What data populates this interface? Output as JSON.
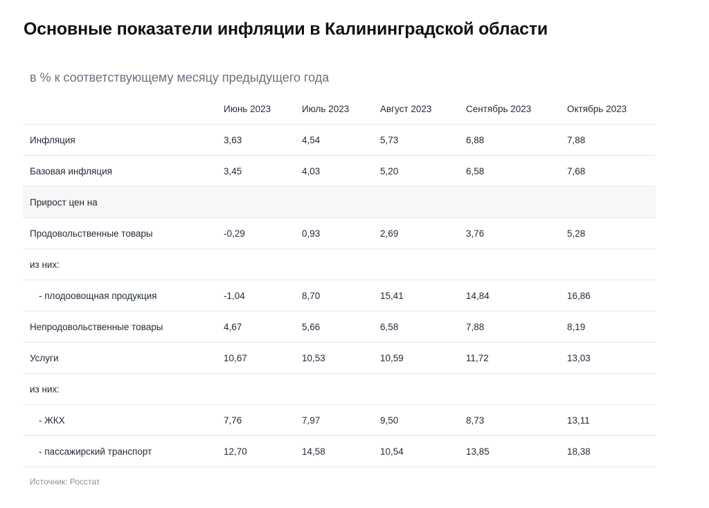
{
  "title": "Основные показатели инфляции в Калининградской области",
  "subtitle": "в % к соответствующему месяцу предыдущего года",
  "source": "Источник: Росстат",
  "chart_data": {
    "type": "table",
    "columns": [
      "",
      "Июнь 2023",
      "Июль 2023",
      "Август 2023",
      "Сентябрь 2023",
      "Октябрь 2023"
    ],
    "rows": [
      {
        "label": "Инфляция",
        "values": [
          "3,63",
          "4,54",
          "5,73",
          "6,88",
          "7,88"
        ]
      },
      {
        "label": "Базовая инфляция",
        "values": [
          "3,45",
          "4,03",
          "5,20",
          "6,58",
          "7,68"
        ]
      },
      {
        "label": "Прирост цен на",
        "values": [
          "",
          "",
          "",
          "",
          ""
        ],
        "shaded": true
      },
      {
        "label": "Продовольственные товары",
        "values": [
          "-0,29",
          "0,93",
          "2,69",
          "3,76",
          "5,28"
        ]
      },
      {
        "label": "из них:",
        "values": [
          "",
          "",
          "",
          "",
          ""
        ]
      },
      {
        "label": "- плодоовощная продукция",
        "values": [
          "-1,04",
          "8,70",
          "15,41",
          "14,84",
          "16,86"
        ],
        "indent": true
      },
      {
        "label": "Непродовольственные товары",
        "values": [
          "4,67",
          "5,66",
          "6,58",
          "7,88",
          "8,19"
        ]
      },
      {
        "label": "Услуги",
        "values": [
          "10,67",
          "10,53",
          "10,59",
          "11,72",
          "13,03"
        ]
      },
      {
        "label": "из них:",
        "values": [
          "",
          "",
          "",
          "",
          ""
        ]
      },
      {
        "label": "- ЖКХ",
        "values": [
          "7,76",
          "7,97",
          "9,50",
          "8,73",
          "13,11"
        ],
        "indent": true
      },
      {
        "label": "- пассажирский транспорт",
        "values": [
          "12,70",
          "14,58",
          "10,54",
          "13,85",
          "18,38"
        ],
        "indent": true
      }
    ]
  }
}
